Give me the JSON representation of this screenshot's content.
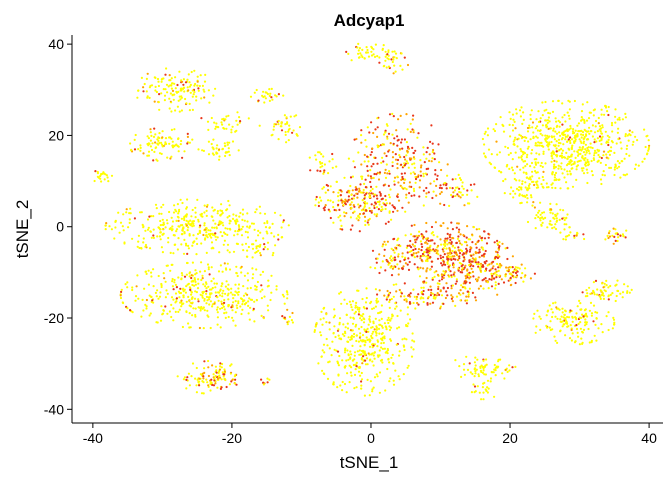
{
  "chart_data": {
    "type": "scatter",
    "title": "Adcyap1",
    "xlabel": "tSNE_1",
    "ylabel": "tSNE_2",
    "xlim": [
      -43,
      42
    ],
    "ylim": [
      -43,
      42
    ],
    "xticks": [
      -40,
      -20,
      0,
      20,
      40
    ],
    "yticks": [
      40,
      20,
      0,
      -20,
      -40
    ],
    "x_tick_labels": [
      "-40",
      "-20",
      "0",
      "20",
      "40"
    ],
    "y_tick_labels": [
      "40",
      "20",
      "0",
      "-20",
      "-40"
    ],
    "grid": false,
    "legend": "none",
    "color_low": "#FFFF00",
    "color_mid": "#FFA500",
    "color_high": "#E8361B",
    "clusters": [
      {
        "cx": -28,
        "cy": 30,
        "rx": 5,
        "ry": 4,
        "n": 140,
        "expr": 0.15
      },
      {
        "cx": -30,
        "cy": 18,
        "rx": 4,
        "ry": 3,
        "n": 90,
        "expr": 0.2
      },
      {
        "cx": -22,
        "cy": 17,
        "rx": 2.5,
        "ry": 2,
        "n": 40,
        "expr": 0.1
      },
      {
        "cx": -39,
        "cy": 11,
        "rx": 1.5,
        "ry": 1.2,
        "n": 20,
        "expr": 0.05
      },
      {
        "cx": -21,
        "cy": 23,
        "rx": 3,
        "ry": 2,
        "n": 35,
        "expr": 0.1
      },
      {
        "cx": -15,
        "cy": 29,
        "rx": 2,
        "ry": 1.5,
        "n": 25,
        "expr": 0.1
      },
      {
        "cx": -13,
        "cy": 22,
        "rx": 2.5,
        "ry": 3,
        "n": 40,
        "expr": 0.1
      },
      {
        "cx": -25,
        "cy": 0,
        "rx": 11,
        "ry": 5,
        "n": 380,
        "expr": 0.05
      },
      {
        "cx": -24,
        "cy": -15,
        "rx": 10,
        "ry": 6,
        "n": 420,
        "expr": 0.08
      },
      {
        "cx": -16,
        "cy": -5,
        "rx": 2,
        "ry": 2,
        "n": 25,
        "expr": 0.05
      },
      {
        "cx": -23,
        "cy": -33,
        "rx": 4,
        "ry": 3,
        "n": 110,
        "expr": 0.35
      },
      {
        "cx": -15,
        "cy": -34,
        "rx": 0.8,
        "ry": 0.8,
        "n": 8,
        "expr": 0.4
      },
      {
        "cx": 0,
        "cy": 38,
        "rx": 3,
        "ry": 2,
        "n": 45,
        "expr": 0.2
      },
      {
        "cx": 3,
        "cy": 36,
        "rx": 2,
        "ry": 2,
        "n": 25,
        "expr": 0.3
      },
      {
        "cx": -7,
        "cy": 14,
        "rx": 2,
        "ry": 2,
        "n": 25,
        "expr": 0.1
      },
      {
        "cx": -2,
        "cy": 5,
        "rx": 5,
        "ry": 5,
        "n": 200,
        "expr": 0.55
      },
      {
        "cx": 4,
        "cy": 14,
        "rx": 6,
        "ry": 9,
        "n": 280,
        "expr": 0.65
      },
      {
        "cx": 10,
        "cy": -5,
        "rx": 7,
        "ry": 5,
        "n": 280,
        "expr": 0.7
      },
      {
        "cx": 14,
        "cy": -9,
        "rx": 6,
        "ry": 6,
        "n": 260,
        "expr": 0.75
      },
      {
        "cx": 3,
        "cy": -7,
        "rx": 3,
        "ry": 3,
        "n": 50,
        "expr": 0.6
      },
      {
        "cx": 8,
        "cy": -15,
        "rx": 6,
        "ry": 2.5,
        "n": 100,
        "expr": 0.6
      },
      {
        "cx": 20,
        "cy": -10,
        "rx": 3,
        "ry": 2,
        "n": 50,
        "expr": 0.6
      },
      {
        "cx": 12,
        "cy": 8,
        "rx": 3,
        "ry": 3,
        "n": 50,
        "expr": 0.4
      },
      {
        "cx": -1,
        "cy": -25,
        "rx": 6,
        "ry": 10,
        "n": 420,
        "expr": 0.05
      },
      {
        "cx": -12,
        "cy": -20,
        "rx": 1.5,
        "ry": 1.5,
        "n": 12,
        "expr": 0.4
      },
      {
        "cx": 16,
        "cy": -31,
        "rx": 4,
        "ry": 2.5,
        "n": 70,
        "expr": 0.05
      },
      {
        "cx": 16,
        "cy": -36,
        "rx": 2,
        "ry": 1.5,
        "n": 20,
        "expr": 0.05
      },
      {
        "cx": 28,
        "cy": 18,
        "rx": 10,
        "ry": 8,
        "n": 650,
        "expr": 0.03
      },
      {
        "cx": 22,
        "cy": 8,
        "rx": 3,
        "ry": 3,
        "n": 60,
        "expr": 0.03
      },
      {
        "cx": 26,
        "cy": 2,
        "rx": 3,
        "ry": 2.5,
        "n": 60,
        "expr": 0.05
      },
      {
        "cx": 29,
        "cy": -21,
        "rx": 5,
        "ry": 4,
        "n": 150,
        "expr": 0.05
      },
      {
        "cx": 34,
        "cy": -14,
        "rx": 3,
        "ry": 2,
        "n": 60,
        "expr": 0.15
      },
      {
        "cx": 35,
        "cy": -2,
        "rx": 2,
        "ry": 1.5,
        "n": 25,
        "expr": 0.3
      },
      {
        "cx": 29,
        "cy": -2,
        "rx": 2,
        "ry": 1,
        "n": 15,
        "expr": 0.2
      }
    ]
  }
}
